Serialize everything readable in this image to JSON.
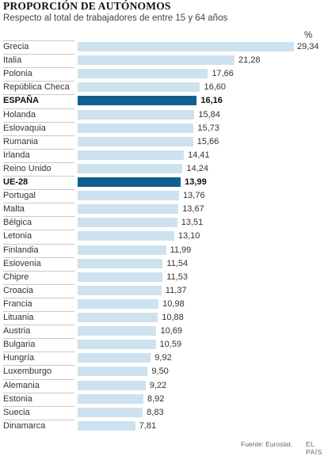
{
  "title": "PROPORCIÓN DE AUTÓNOMOS",
  "subtitle": "Respecto al total de trabajadores de entre 15 y 64 años",
  "unit": "%",
  "source": "Fuente: Eurostat.",
  "brand": "EL PAÍS",
  "colors": {
    "bar": "#cde2ee",
    "highlight": "#0f5f8f"
  },
  "chart_data": {
    "type": "bar",
    "orientation": "horizontal",
    "title": "PROPORCIÓN DE AUTÓNOMOS",
    "subtitle": "Respecto al total de trabajadores de entre 15 y 64 años",
    "unit": "%",
    "categories": [
      "Grecia",
      "Italia",
      "Polonia",
      "República Checa",
      "ESPAÑA",
      "Holanda",
      "Eslovaquia",
      "Rumania",
      "Irlanda",
      "Reino Unido",
      "UE-28",
      "Portugal",
      "Malta",
      "Bélgica",
      "Letonia",
      "Finlandia",
      "Eslovenia",
      "Chipre",
      "Croacia",
      "Francia",
      "Lituania",
      "Austria",
      "Bulgaria",
      "Hungría",
      "Luxemburgo",
      "Alemania",
      "Estonia",
      "Suecia",
      "Dinamarca"
    ],
    "labels": [
      "29,34",
      "21,28",
      "17,66",
      "16,60",
      "16,16",
      "15,84",
      "15,73",
      "15,66",
      "14,41",
      "14,24",
      "13,99",
      "13,76",
      "13,67",
      "13,51",
      "13,10",
      "11,99",
      "11,54",
      "11,53",
      "11,37",
      "10,98",
      "10,88",
      "10,69",
      "10,59",
      "9,92",
      "9,50",
      "9,22",
      "8,92",
      "8,83",
      "7,81"
    ],
    "values": [
      29.34,
      21.28,
      17.66,
      16.6,
      16.16,
      15.84,
      15.73,
      15.66,
      14.41,
      14.24,
      13.99,
      13.76,
      13.67,
      13.51,
      13.1,
      11.99,
      11.54,
      11.53,
      11.37,
      10.98,
      10.88,
      10.69,
      10.59,
      9.92,
      9.5,
      9.22,
      8.92,
      8.83,
      7.81
    ],
    "highlighted": [
      "ESPAÑA",
      "UE-28"
    ],
    "xlim": [
      0,
      29.34
    ],
    "grid": false,
    "legend": "none"
  }
}
